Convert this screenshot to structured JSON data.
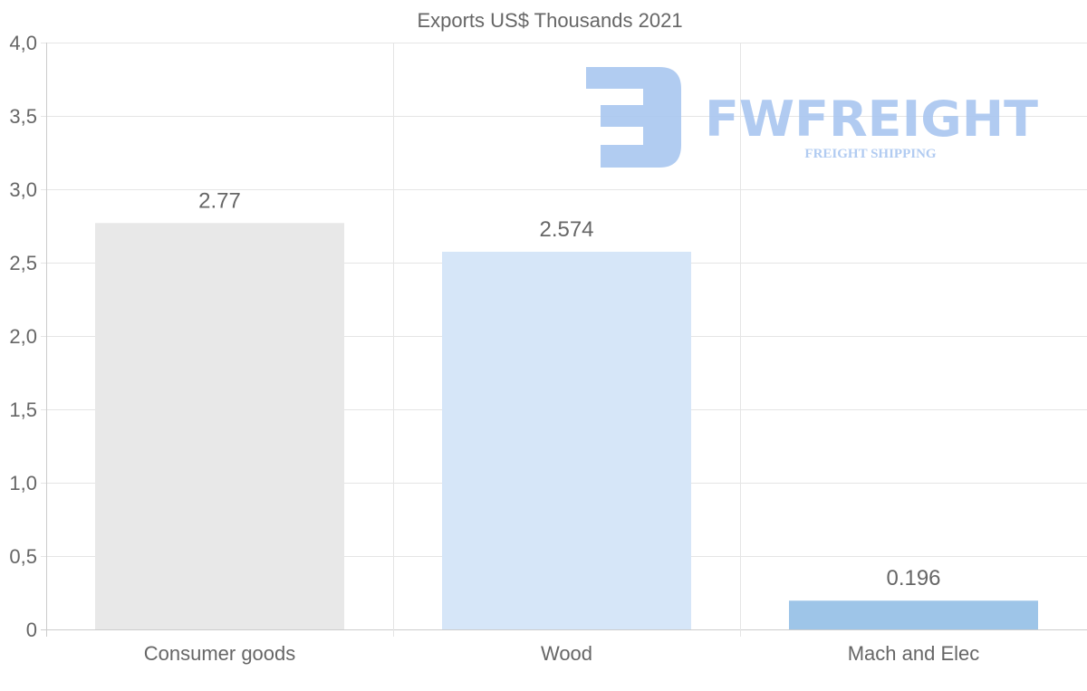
{
  "chart_data": {
    "type": "bar",
    "title": "Exports US$ Thousands 2021",
    "categories": [
      "Consumer goods",
      "Wood",
      "Mach and Elec"
    ],
    "values": [
      2.77,
      2.574,
      0.196
    ],
    "data_labels": [
      "2.77",
      "2.574",
      "0.196"
    ],
    "bar_colors": [
      "#e8e8e8",
      "#d6e6f8",
      "#9ec5e8"
    ],
    "ylim": [
      0,
      4
    ],
    "yticks": [
      0,
      0.5,
      1,
      1.5,
      2,
      2.5,
      3,
      3.5,
      4
    ],
    "ytick_labels": [
      "0",
      "0,5",
      "1,0",
      "1,5",
      "2,0",
      "2,5",
      "3,0",
      "3,5",
      "4,0"
    ],
    "xlabel": "",
    "ylabel": "",
    "grid": true,
    "legend": "none"
  },
  "watermark": {
    "brand": "FWFREIGHT",
    "tagline": "FREIGHT SHIPPING",
    "color": "#a9c6f0"
  }
}
